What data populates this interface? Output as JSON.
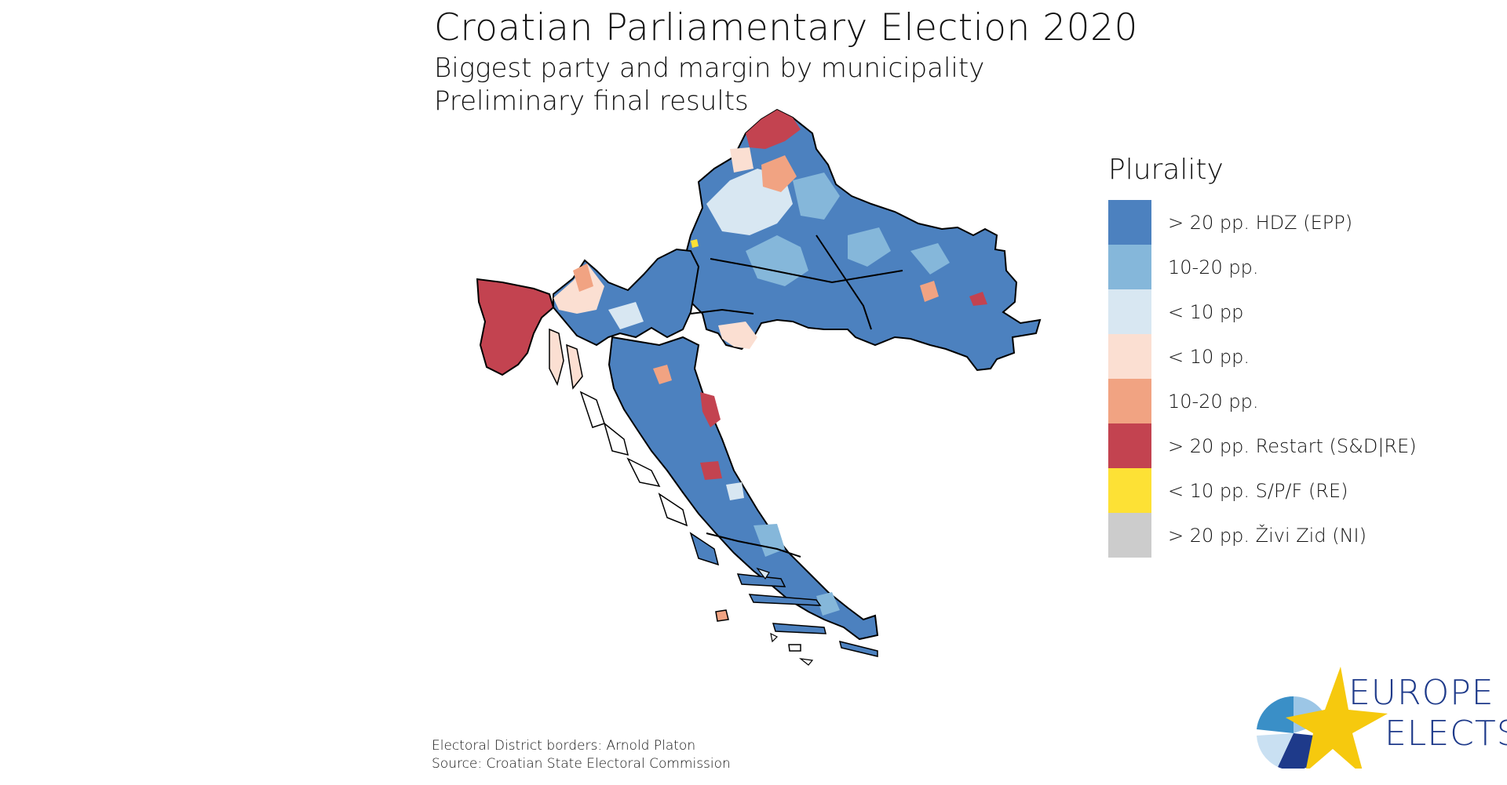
{
  "header": {
    "title": "Croatian Parliamentary Election 2020",
    "subtitle": "Biggest party and margin by municipality",
    "subtitle2": "Preliminary final results"
  },
  "legend": {
    "title": "Plurality",
    "items": [
      {
        "label": "> 20 pp. HDZ (EPP)",
        "color": "#4c81bf"
      },
      {
        "label": "10-20 pp.",
        "color": "#85b7da"
      },
      {
        "label": "< 10 pp",
        "color": "#d8e7f2"
      },
      {
        "label": "< 10 pp.",
        "color": "#fbdfd2"
      },
      {
        "label": "10-20 pp.",
        "color": "#f1a382"
      },
      {
        "label": "> 20 pp. Restart (S&D|RE)",
        "color": "#c34350"
      },
      {
        "label": "< 10 pp. S/P/F (RE)",
        "color": "#fde135"
      },
      {
        "label": "> 20 pp. Živi Zid (NI)",
        "color": "#cccccc"
      }
    ]
  },
  "footnotes": {
    "line1": "Electoral District borders: Arnold Platon",
    "line2": "Source: Croatian State Electoral Commission"
  },
  "logo": {
    "line1": "EUROPE",
    "line2": "ELECTS",
    "colors": {
      "star": "#f6c90e",
      "navy": "#1e3a8a",
      "blue": "#3a8fc7",
      "light": "#9cc6e6"
    }
  }
}
